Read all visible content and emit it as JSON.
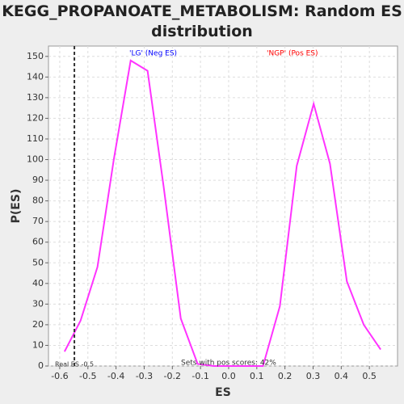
{
  "chart_data": {
    "type": "line",
    "title": "KEGG_PROPANOATE_METABOLISM: Random ES distribution",
    "x_label": "ES",
    "y_label": "P(ES)",
    "x": [
      -0.583,
      -0.526,
      -0.466,
      -0.408,
      -0.348,
      -0.288,
      -0.231,
      -0.17,
      -0.11,
      -0.053,
      0.004,
      0.062,
      0.122,
      0.182,
      0.242,
      0.302,
      0.36,
      0.42,
      0.48,
      0.54
    ],
    "values": [
      7,
      22,
      48,
      100,
      148,
      143,
      87,
      23,
      1,
      0,
      0,
      0,
      0,
      29,
      97,
      127,
      98,
      41,
      20,
      8
    ],
    "color": "#ff33ff",
    "xlim": [
      -0.64,
      0.6
    ],
    "ylim": [
      0,
      155
    ],
    "xticks": [
      -0.6,
      -0.5,
      -0.4,
      -0.3,
      -0.2,
      -0.1,
      {
        "value": 0,
        "label": "0.0"
      },
      0.1,
      0.2,
      0.3,
      0.4,
      0.5
    ],
    "yticks": [
      0,
      10,
      20,
      30,
      40,
      50,
      60,
      70,
      80,
      90,
      100,
      110,
      120,
      130,
      140,
      150
    ],
    "grid": true,
    "real_es": -0.548,
    "real_es_label": "Real ES -0.5",
    "neg_label": "'LG' (Neg ES)",
    "neg_color": "#0000ff",
    "pos_label": "'NGP' (Pos ES)",
    "pos_color": "#ff0000",
    "pos_scores_note": "Sets with pos scores: 42%"
  }
}
